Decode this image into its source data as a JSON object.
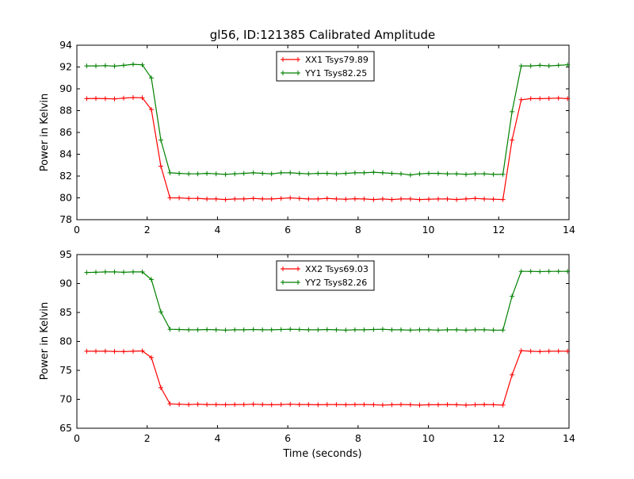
{
  "figure_title": "gl56, ID:121385 Calibrated Amplitude",
  "colors": {
    "red": "#ff0000",
    "green": "#008000",
    "frame": "#000000",
    "background": "#ffffff"
  },
  "chart_data": [
    {
      "type": "line",
      "title": "gl56, ID:121385 Calibrated Amplitude",
      "xlabel": "",
      "ylabel": "Power in Kelvin",
      "xlim": [
        0,
        14
      ],
      "ylim": [
        78,
        94
      ],
      "xticks": [
        0,
        2,
        4,
        6,
        8,
        10,
        12,
        14
      ],
      "yticks": [
        78,
        80,
        82,
        84,
        86,
        88,
        90,
        92,
        94
      ],
      "grid": false,
      "marker": "+",
      "legend_position": "upper center",
      "x": [
        0.28,
        0.54,
        0.81,
        1.07,
        1.33,
        1.6,
        1.86,
        2.12,
        2.39,
        2.65,
        2.91,
        3.18,
        3.44,
        3.7,
        3.96,
        4.23,
        4.49,
        4.75,
        5.02,
        5.28,
        5.54,
        5.81,
        6.07,
        6.33,
        6.59,
        6.86,
        7.12,
        7.38,
        7.65,
        7.91,
        8.17,
        8.44,
        8.7,
        8.96,
        9.22,
        9.49,
        9.75,
        10.01,
        10.28,
        10.54,
        10.8,
        11.07,
        11.33,
        11.59,
        11.85,
        12.12,
        12.38,
        12.64,
        12.91,
        13.17,
        13.43,
        13.7,
        13.96
      ],
      "series": [
        {
          "name": "XX1 Tsys79.89",
          "color": "#ff0000",
          "values": [
            89.1,
            89.12,
            89.1,
            89.08,
            89.15,
            89.2,
            89.18,
            88.1,
            82.9,
            80.0,
            80.0,
            79.95,
            79.95,
            79.9,
            79.9,
            79.85,
            79.9,
            79.9,
            79.95,
            79.9,
            79.9,
            79.95,
            80.0,
            79.95,
            79.9,
            79.9,
            79.95,
            79.9,
            79.88,
            79.92,
            79.9,
            79.85,
            79.9,
            79.85,
            79.9,
            79.9,
            79.85,
            79.88,
            79.9,
            79.9,
            79.85,
            79.9,
            79.95,
            79.9,
            79.88,
            79.85,
            85.3,
            89.0,
            89.1,
            89.1,
            89.12,
            89.15,
            89.1
          ]
        },
        {
          "name": "YY1 Tsys82.25",
          "color": "#008000",
          "values": [
            92.1,
            92.1,
            92.12,
            92.08,
            92.15,
            92.25,
            92.2,
            91.0,
            85.3,
            82.3,
            82.25,
            82.2,
            82.2,
            82.25,
            82.2,
            82.15,
            82.2,
            82.25,
            82.3,
            82.25,
            82.2,
            82.3,
            82.3,
            82.25,
            82.2,
            82.25,
            82.25,
            82.2,
            82.25,
            82.3,
            82.3,
            82.35,
            82.3,
            82.25,
            82.2,
            82.1,
            82.2,
            82.25,
            82.25,
            82.2,
            82.2,
            82.15,
            82.2,
            82.2,
            82.15,
            82.15,
            87.9,
            92.1,
            92.1,
            92.15,
            92.1,
            92.15,
            92.2
          ]
        }
      ]
    },
    {
      "type": "line",
      "title": "",
      "xlabel": "Time (seconds)",
      "ylabel": "Power in Kelvin",
      "xlim": [
        0,
        14
      ],
      "ylim": [
        65,
        95
      ],
      "xticks": [
        0,
        2,
        4,
        6,
        8,
        10,
        12,
        14
      ],
      "yticks": [
        65,
        70,
        75,
        80,
        85,
        90,
        95
      ],
      "grid": false,
      "marker": "+",
      "legend_position": "upper center",
      "x": [
        0.28,
        0.54,
        0.81,
        1.07,
        1.33,
        1.6,
        1.86,
        2.12,
        2.39,
        2.65,
        2.91,
        3.18,
        3.44,
        3.7,
        3.96,
        4.23,
        4.49,
        4.75,
        5.02,
        5.28,
        5.54,
        5.81,
        6.07,
        6.33,
        6.59,
        6.86,
        7.12,
        7.38,
        7.65,
        7.91,
        8.17,
        8.44,
        8.7,
        8.96,
        9.22,
        9.49,
        9.75,
        10.01,
        10.28,
        10.54,
        10.8,
        11.07,
        11.33,
        11.59,
        11.85,
        12.12,
        12.38,
        12.64,
        12.91,
        13.17,
        13.43,
        13.7,
        13.96
      ],
      "series": [
        {
          "name": "XX2 Tsys69.03",
          "color": "#ff0000",
          "values": [
            78.3,
            78.3,
            78.32,
            78.28,
            78.25,
            78.3,
            78.35,
            77.2,
            72.0,
            69.2,
            69.15,
            69.1,
            69.15,
            69.1,
            69.1,
            69.05,
            69.1,
            69.1,
            69.15,
            69.1,
            69.05,
            69.1,
            69.15,
            69.1,
            69.1,
            69.05,
            69.1,
            69.1,
            69.05,
            69.1,
            69.1,
            69.05,
            69.0,
            69.05,
            69.1,
            69.05,
            69.0,
            69.05,
            69.05,
            69.1,
            69.05,
            69.0,
            69.05,
            69.1,
            69.05,
            69.0,
            74.2,
            78.4,
            78.3,
            78.25,
            78.3,
            78.32,
            78.3
          ]
        },
        {
          "name": "YY2 Tsys82.26",
          "color": "#008000",
          "values": [
            91.9,
            91.95,
            92.0,
            92.0,
            91.95,
            92.0,
            92.0,
            90.7,
            85.1,
            82.1,
            82.05,
            82.0,
            82.0,
            82.05,
            82.0,
            81.95,
            82.0,
            82.0,
            82.05,
            82.0,
            82.0,
            82.05,
            82.1,
            82.05,
            82.0,
            82.0,
            82.05,
            82.0,
            81.95,
            82.0,
            82.0,
            82.05,
            82.1,
            82.0,
            82.0,
            81.95,
            82.0,
            82.0,
            81.95,
            82.0,
            82.0,
            81.95,
            82.0,
            82.0,
            81.95,
            81.95,
            87.8,
            92.1,
            92.1,
            92.05,
            92.1,
            92.1,
            92.1
          ]
        }
      ]
    }
  ]
}
